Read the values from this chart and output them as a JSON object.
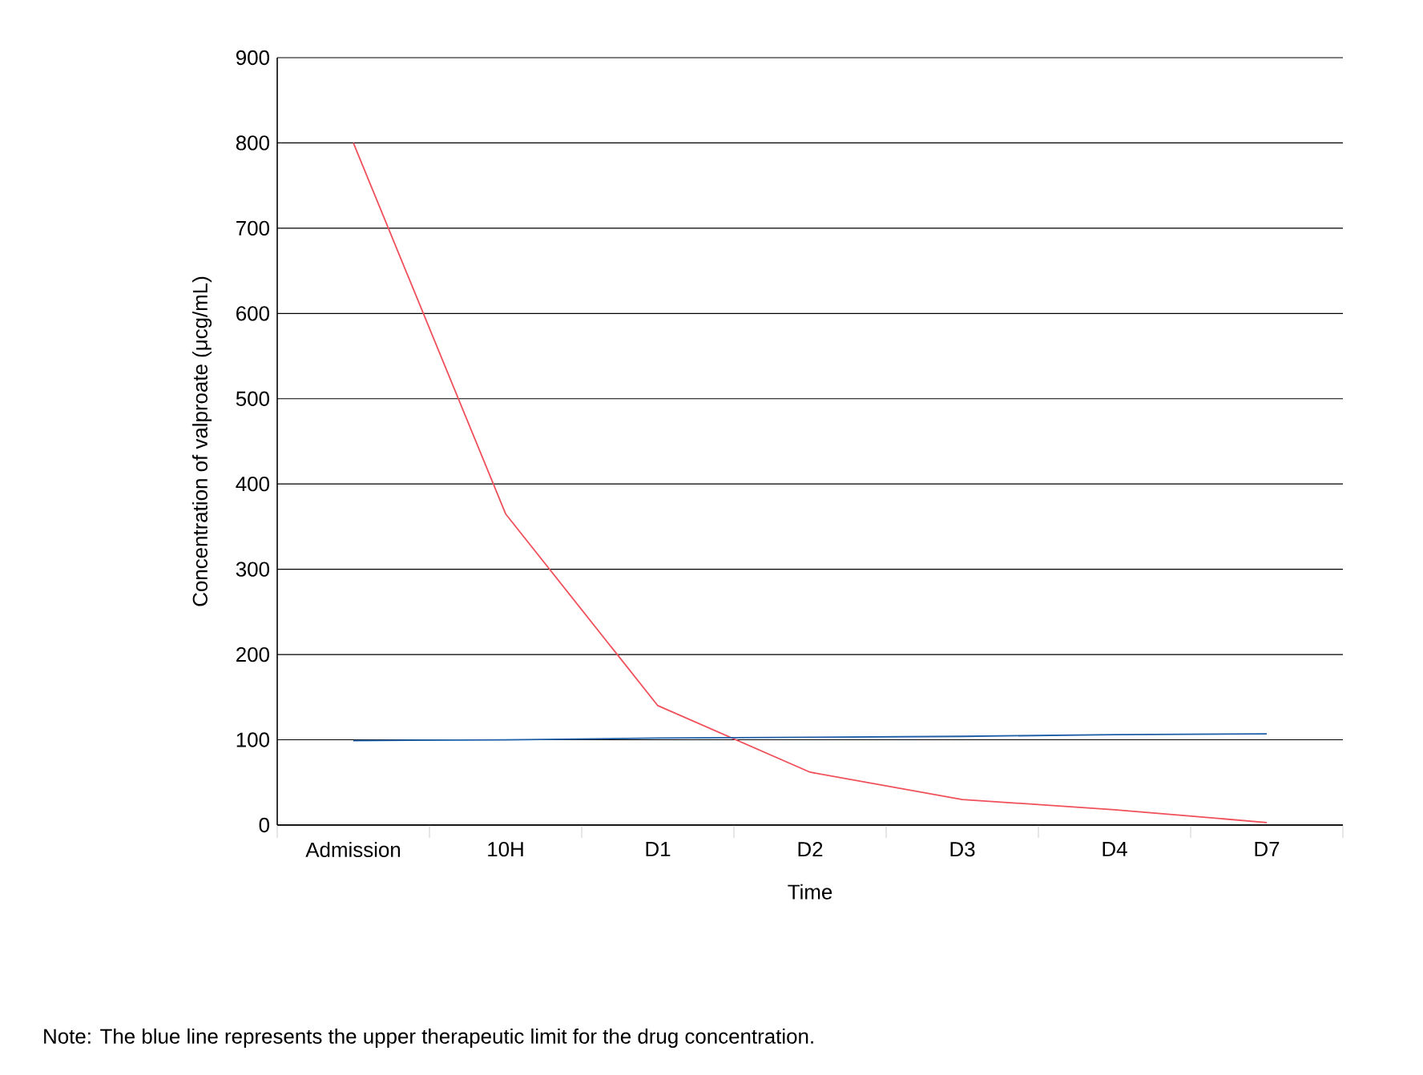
{
  "chart_data": {
    "type": "line",
    "xlabel": "Time",
    "ylabel": "Concentration of valproate (μcg/mL)",
    "categories": [
      "Admission",
      "10H",
      "D1",
      "D2",
      "D3",
      "D4",
      "D7"
    ],
    "series": [
      {
        "color": "#f0505a",
        "values": [
          800,
          365,
          140,
          62,
          30,
          18,
          3
        ]
      },
      {
        "color": "#1f5fa8",
        "values": [
          99,
          100,
          102,
          103,
          104,
          106,
          107
        ]
      }
    ],
    "ylim": [
      0,
      900
    ],
    "yticks": [
      0,
      100,
      200,
      300,
      400,
      500,
      600,
      700,
      800,
      900
    ],
    "grid": "y",
    "marker": "none",
    "line_style": "solid",
    "annotations": [
      "Note: The blue line represents the upper therapeutic limit for the drug concentration."
    ]
  }
}
